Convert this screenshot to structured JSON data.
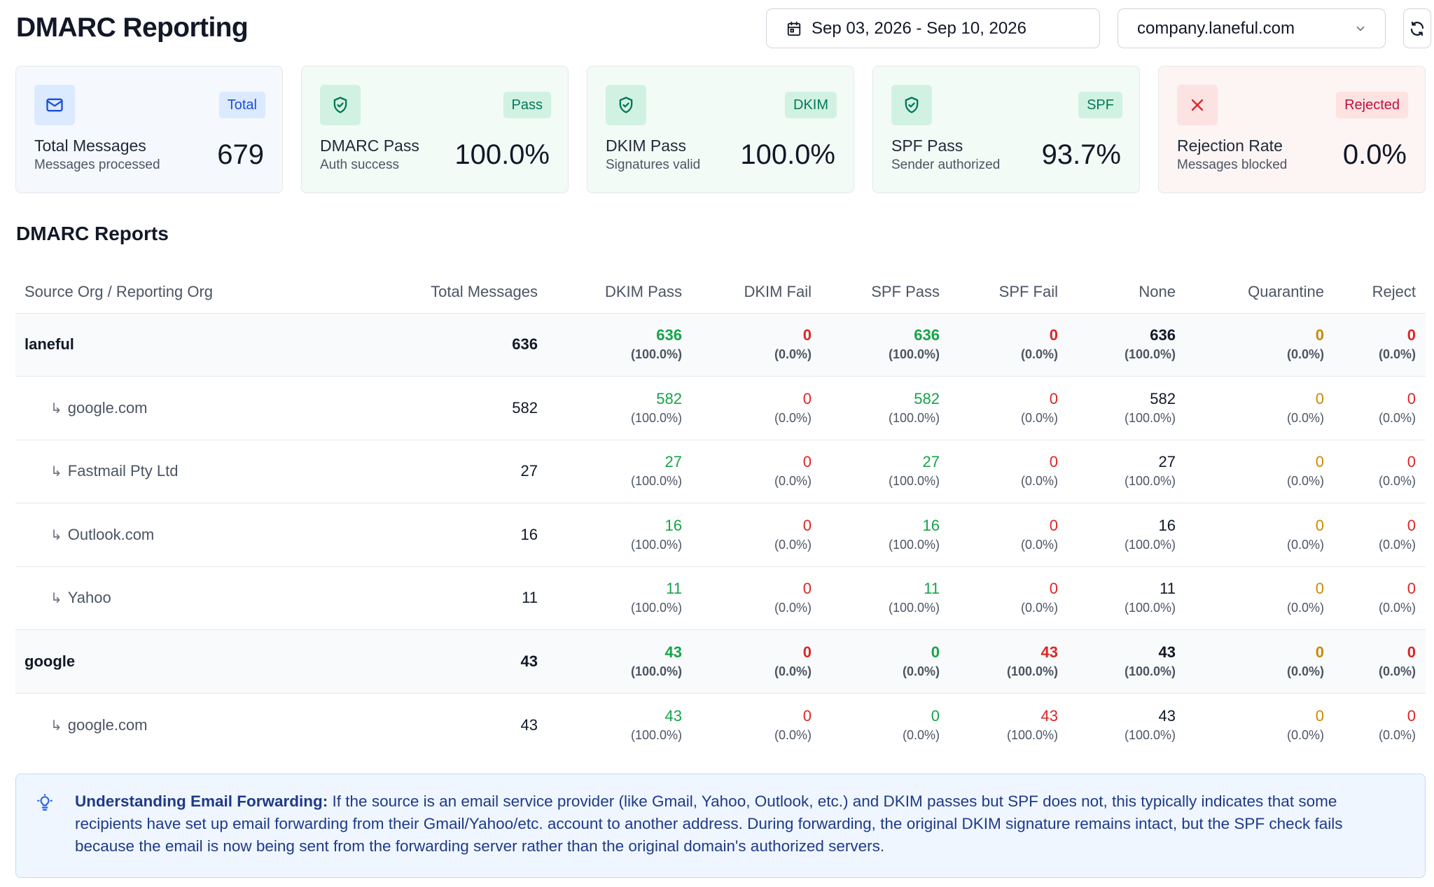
{
  "header": {
    "title": "DMARC Reporting",
    "date_range": "Sep 03, 2026 - Sep 10, 2026",
    "domain": "company.laneful.com"
  },
  "cards": [
    {
      "badge": "Total",
      "title": "Total Messages",
      "subtitle": "Messages processed",
      "value": "679",
      "icon": "mail-icon",
      "accent": "#1d4ed8"
    },
    {
      "badge": "Pass",
      "title": "DMARC Pass",
      "subtitle": "Auth success",
      "value": "100.0%",
      "icon": "shield-check-icon",
      "accent": "#047857"
    },
    {
      "badge": "DKIM",
      "title": "DKIM Pass",
      "subtitle": "Signatures valid",
      "value": "100.0%",
      "icon": "shield-check-icon",
      "accent": "#047857"
    },
    {
      "badge": "SPF",
      "title": "SPF Pass",
      "subtitle": "Sender authorized",
      "value": "93.7%",
      "icon": "shield-check-icon",
      "accent": "#047857"
    },
    {
      "badge": "Rejected",
      "title": "Rejection Rate",
      "subtitle": "Messages blocked",
      "value": "0.0%",
      "icon": "x-icon",
      "accent": "#dc2626"
    }
  ],
  "reports": {
    "title": "DMARC Reports",
    "columns": [
      "Source Org / Reporting Org",
      "Total Messages",
      "DKIM Pass",
      "DKIM Fail",
      "SPF Pass",
      "SPF Fail",
      "None",
      "Quarantine",
      "Reject"
    ],
    "rows": [
      {
        "type": "parent",
        "org": "laneful",
        "total": "636",
        "cells": [
          [
            "636",
            "(100.0%)"
          ],
          [
            "0",
            "(0.0%)"
          ],
          [
            "636",
            "(100.0%)"
          ],
          [
            "0",
            "(0.0%)"
          ],
          [
            "636",
            "(100.0%)"
          ],
          [
            "0",
            "(0.0%)"
          ],
          [
            "0",
            "(0.0%)"
          ]
        ]
      },
      {
        "type": "child",
        "org": "google.com",
        "total": "582",
        "cells": [
          [
            "582",
            "(100.0%)"
          ],
          [
            "0",
            "(0.0%)"
          ],
          [
            "582",
            "(100.0%)"
          ],
          [
            "0",
            "(0.0%)"
          ],
          [
            "582",
            "(100.0%)"
          ],
          [
            "0",
            "(0.0%)"
          ],
          [
            "0",
            "(0.0%)"
          ]
        ]
      },
      {
        "type": "child",
        "org": "Fastmail Pty Ltd",
        "total": "27",
        "cells": [
          [
            "27",
            "(100.0%)"
          ],
          [
            "0",
            "(0.0%)"
          ],
          [
            "27",
            "(100.0%)"
          ],
          [
            "0",
            "(0.0%)"
          ],
          [
            "27",
            "(100.0%)"
          ],
          [
            "0",
            "(0.0%)"
          ],
          [
            "0",
            "(0.0%)"
          ]
        ]
      },
      {
        "type": "child",
        "org": "Outlook.com",
        "total": "16",
        "cells": [
          [
            "16",
            "(100.0%)"
          ],
          [
            "0",
            "(0.0%)"
          ],
          [
            "16",
            "(100.0%)"
          ],
          [
            "0",
            "(0.0%)"
          ],
          [
            "16",
            "(100.0%)"
          ],
          [
            "0",
            "(0.0%)"
          ],
          [
            "0",
            "(0.0%)"
          ]
        ]
      },
      {
        "type": "child",
        "org": "Yahoo",
        "total": "11",
        "cells": [
          [
            "11",
            "(100.0%)"
          ],
          [
            "0",
            "(0.0%)"
          ],
          [
            "11",
            "(100.0%)"
          ],
          [
            "0",
            "(0.0%)"
          ],
          [
            "11",
            "(100.0%)"
          ],
          [
            "0",
            "(0.0%)"
          ],
          [
            "0",
            "(0.0%)"
          ]
        ]
      },
      {
        "type": "parent",
        "org": "google",
        "total": "43",
        "cells": [
          [
            "43",
            "(100.0%)"
          ],
          [
            "0",
            "(0.0%)"
          ],
          [
            "0",
            "(0.0%)"
          ],
          [
            "43",
            "(100.0%)"
          ],
          [
            "43",
            "(100.0%)"
          ],
          [
            "0",
            "(0.0%)"
          ],
          [
            "0",
            "(0.0%)"
          ]
        ]
      },
      {
        "type": "child",
        "org": "google.com",
        "total": "43",
        "cells": [
          [
            "43",
            "(100.0%)"
          ],
          [
            "0",
            "(0.0%)"
          ],
          [
            "0",
            "(0.0%)"
          ],
          [
            "43",
            "(100.0%)"
          ],
          [
            "43",
            "(100.0%)"
          ],
          [
            "0",
            "(0.0%)"
          ],
          [
            "0",
            "(0.0%)"
          ]
        ]
      }
    ]
  },
  "colors": {
    "pass": "#16a34a",
    "fail": "#dc2626",
    "neutral": "#111827",
    "quarantine": "#ca8a04"
  },
  "info": {
    "heading": "Understanding Email Forwarding:",
    "body": " If the source is an email service provider (like Gmail, Yahoo, Outlook, etc.) and DKIM passes but SPF does not, this typically indicates that some recipients have set up email forwarding from their Gmail/Yahoo/etc. account to another address. During forwarding, the original DKIM signature remains intact, but the SPF check fails because the email is now being sent from the forwarding server rather than the original domain's authorized servers."
  }
}
